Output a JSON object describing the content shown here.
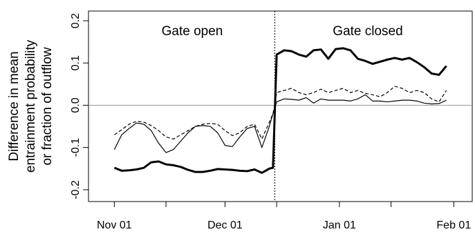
{
  "chart_data": {
    "type": "line",
    "ylabel": [
      "Difference in mean",
      "entrainment probability",
      "or fraction of outflow"
    ],
    "annotations": [
      "Gate open",
      "Gate closed"
    ],
    "x": [
      0,
      2,
      4,
      6,
      8,
      10,
      12,
      14,
      16,
      18,
      20,
      22,
      24,
      26,
      28,
      30,
      32,
      34,
      36,
      38,
      40,
      42,
      43,
      44,
      46,
      48,
      50,
      52,
      54,
      56,
      58,
      60,
      62,
      64,
      66,
      68,
      70,
      72,
      74,
      76,
      78,
      80,
      82,
      84,
      86,
      88,
      90
    ],
    "series": [
      {
        "color": "#000000",
        "width": 3,
        "dash": "none",
        "values": [
          -0.148,
          -0.155,
          -0.154,
          -0.152,
          -0.148,
          -0.135,
          -0.133,
          -0.14,
          -0.142,
          -0.146,
          -0.153,
          -0.158,
          -0.158,
          -0.155,
          -0.151,
          -0.152,
          -0.153,
          -0.155,
          -0.156,
          -0.152,
          -0.16,
          -0.15,
          -0.148,
          0.12,
          0.13,
          0.128,
          0.12,
          0.115,
          0.13,
          0.132,
          0.11,
          0.133,
          0.135,
          0.13,
          0.11,
          0.105,
          0.098,
          0.103,
          0.108,
          0.112,
          0.108,
          0.112,
          0.102,
          0.09,
          0.075,
          0.072,
          0.093
        ]
      },
      {
        "color": "#000000",
        "width": 1.2,
        "dash": "5,3",
        "values": [
          -0.07,
          -0.058,
          -0.045,
          -0.038,
          -0.04,
          -0.048,
          -0.06,
          -0.075,
          -0.08,
          -0.07,
          -0.06,
          -0.05,
          -0.045,
          -0.043,
          -0.045,
          -0.06,
          -0.072,
          -0.065,
          -0.05,
          -0.045,
          -0.08,
          -0.04,
          -0.02,
          0.03,
          0.035,
          0.04,
          0.03,
          0.025,
          0.03,
          0.038,
          0.03,
          0.035,
          0.04,
          0.03,
          0.035,
          0.028,
          0.025,
          0.02,
          0.03,
          0.045,
          0.04,
          0.03,
          0.035,
          0.03,
          0.015,
          0.008,
          0.035
        ]
      },
      {
        "color": "#000000",
        "width": 1.2,
        "dash": "none",
        "values": [
          -0.105,
          -0.07,
          -0.055,
          -0.042,
          -0.045,
          -0.06,
          -0.09,
          -0.112,
          -0.105,
          -0.085,
          -0.065,
          -0.05,
          -0.048,
          -0.05,
          -0.065,
          -0.095,
          -0.098,
          -0.075,
          -0.055,
          -0.05,
          -0.1,
          -0.05,
          -0.02,
          0.008,
          0.015,
          0.014,
          0.012,
          0.018,
          0.005,
          0.015,
          0.012,
          0.012,
          0.012,
          0.01,
          0.015,
          0.025,
          0.01,
          0.01,
          0.008,
          0.01,
          0.012,
          0.012,
          0.01,
          0.005,
          0.003,
          0.004,
          0.012
        ]
      }
    ],
    "xlim": [
      -7,
      97
    ],
    "xticks": [
      {
        "value": 0,
        "label": "Nov 01"
      },
      {
        "value": 30,
        "label": "Dec 01"
      },
      {
        "value": 61,
        "label": "Jan 01"
      },
      {
        "value": 92,
        "label": "Feb 01"
      }
    ],
    "xminor_ticks": [
      14,
      44,
      75
    ],
    "ylim": [
      -0.228,
      0.223
    ],
    "yticks": [
      -0.2,
      -0.1,
      {
        "value": 0,
        "label": "0.0"
      },
      0.1,
      0.2
    ],
    "hline": 0,
    "vline": 43.5
  }
}
